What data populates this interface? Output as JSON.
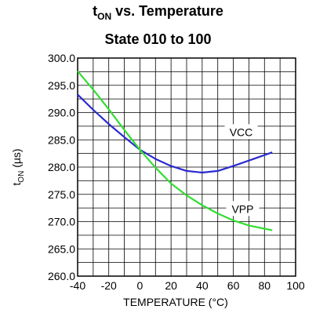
{
  "chart_data": {
    "type": "line",
    "title_main": "t",
    "title_sub": "ON",
    "title_rest": " vs. Temperature",
    "subtitle": "State 010 to 100",
    "xlabel": "TEMPERATURE (°C)",
    "ylabel_main": "t",
    "ylabel_sub": "ON",
    "ylabel_rest": " (µs)",
    "xlim": [
      -40,
      100
    ],
    "ylim": [
      260.0,
      300.0
    ],
    "x_ticks": [
      "-40",
      "-20",
      "0",
      "20",
      "40",
      "60",
      "80",
      "100"
    ],
    "y_ticks": [
      "300.0",
      "295.0",
      "290.0",
      "285.0",
      "280.0",
      "275.0",
      "270.0",
      "265.0",
      "260.0"
    ],
    "grid": true,
    "series": [
      {
        "name": "VCC",
        "color": "#2a2ad0",
        "x": [
          -40,
          -30,
          -20,
          -10,
          0,
          10,
          20,
          30,
          40,
          50,
          60,
          70,
          80,
          85
        ],
        "y": [
          293.3,
          290.5,
          287.9,
          285.5,
          283.2,
          281.5,
          280.2,
          279.3,
          279.0,
          279.3,
          280.2,
          281.2,
          282.2,
          282.7
        ]
      },
      {
        "name": "VPP",
        "color": "#33dd33",
        "x": [
          -40,
          -30,
          -20,
          -10,
          0,
          10,
          20,
          30,
          40,
          50,
          60,
          70,
          80,
          85
        ],
        "y": [
          297.6,
          294.2,
          290.6,
          286.8,
          283.2,
          279.9,
          277.0,
          274.8,
          273.0,
          271.5,
          270.2,
          269.3,
          268.7,
          268.4
        ]
      }
    ]
  }
}
